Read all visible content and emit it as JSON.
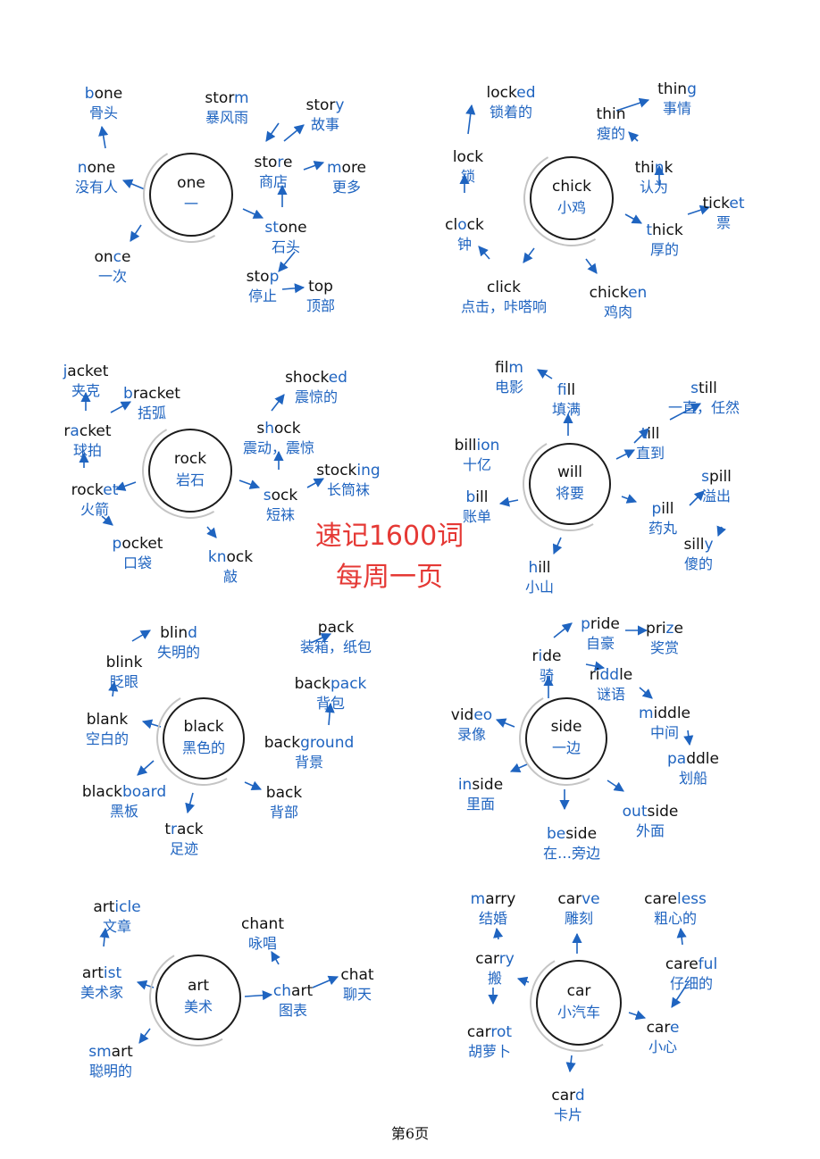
{
  "stamp": {
    "line1": "速记1600词",
    "line2": "每周一页"
  },
  "footer": {
    "page_label": "第6页"
  },
  "colors": {
    "accent_blue": "#1f64c0",
    "stamp_red": "#e53935",
    "ink": "#111111"
  },
  "clusters": [
    {
      "id": "one",
      "hub": {
        "en": [
          [
            "one",
            false
          ]
        ],
        "zh": "一"
      },
      "words": [
        {
          "en": [
            [
              "b",
              true
            ],
            [
              "one",
              false
            ]
          ],
          "zh": "骨头"
        },
        {
          "en": [
            [
              "n",
              true
            ],
            [
              "one",
              false
            ]
          ],
          "zh": "没有人"
        },
        {
          "en": [
            [
              "on",
              false
            ],
            [
              "c",
              true
            ],
            [
              "e",
              false
            ]
          ],
          "zh": "一次"
        },
        {
          "en": [
            [
              "stor",
              false
            ],
            [
              "m",
              true
            ]
          ],
          "zh": "暴风雨"
        },
        {
          "en": [
            [
              "sto",
              false
            ],
            [
              "r",
              true
            ],
            [
              "e",
              false
            ]
          ],
          "zh": "商店"
        },
        {
          "en": [
            [
              "stor",
              false
            ],
            [
              "y",
              true
            ]
          ],
          "zh": "故事"
        },
        {
          "en": [
            [
              "m",
              true
            ],
            [
              "ore",
              false
            ]
          ],
          "zh": "更多"
        },
        {
          "en": [
            [
              "st",
              true
            ],
            [
              "one",
              false
            ]
          ],
          "zh": "石头"
        },
        {
          "en": [
            [
              "sto",
              false
            ],
            [
              "p",
              true
            ]
          ],
          "zh": "停止"
        },
        {
          "en": [
            [
              "top",
              false
            ]
          ],
          "zh": "顶部"
        }
      ]
    },
    {
      "id": "chick",
      "hub": {
        "en": [
          [
            "chick",
            false
          ]
        ],
        "zh": "小鸡"
      },
      "words": [
        {
          "en": [
            [
              "lock",
              false
            ],
            [
              "ed",
              true
            ]
          ],
          "zh": "锁着的"
        },
        {
          "en": [
            [
              "lock",
              false
            ]
          ],
          "zh": "锁"
        },
        {
          "en": [
            [
              "cl",
              false
            ],
            [
              "o",
              true
            ],
            [
              "ck",
              false
            ]
          ],
          "zh": "钟"
        },
        {
          "en": [
            [
              "click",
              false
            ]
          ],
          "zh": "点击，咔嗒响"
        },
        {
          "en": [
            [
              "chick",
              false
            ],
            [
              "en",
              true
            ]
          ],
          "zh": "鸡肉"
        },
        {
          "en": [
            [
              "thin",
              false
            ]
          ],
          "zh": "瘦的"
        },
        {
          "en": [
            [
              "thin",
              false
            ],
            [
              "g",
              true
            ]
          ],
          "zh": "事情"
        },
        {
          "en": [
            [
              "thi",
              false
            ],
            [
              "n",
              true
            ],
            [
              "k",
              false
            ]
          ],
          "zh": "认为"
        },
        {
          "en": [
            [
              "t",
              true
            ],
            [
              "hick",
              false
            ]
          ],
          "zh": "厚的"
        },
        {
          "en": [
            [
              "tick",
              false
            ],
            [
              "et",
              true
            ]
          ],
          "zh": "票"
        }
      ]
    },
    {
      "id": "rock",
      "hub": {
        "en": [
          [
            "rock",
            false
          ]
        ],
        "zh": "岩石"
      },
      "words": [
        {
          "en": [
            [
              "j",
              true
            ],
            [
              "acket",
              false
            ]
          ],
          "zh": "夹克"
        },
        {
          "en": [
            [
              "b",
              true
            ],
            [
              "racket",
              false
            ]
          ],
          "zh": "括弧"
        },
        {
          "en": [
            [
              "r",
              false
            ],
            [
              "a",
              true
            ],
            [
              "cket",
              false
            ]
          ],
          "zh": "球拍"
        },
        {
          "en": [
            [
              "rock",
              false
            ],
            [
              "et",
              true
            ]
          ],
          "zh": "火箭"
        },
        {
          "en": [
            [
              "p",
              true
            ],
            [
              "ocket",
              false
            ]
          ],
          "zh": "口袋"
        },
        {
          "en": [
            [
              "kn",
              true
            ],
            [
              "ock",
              false
            ]
          ],
          "zh": "敲"
        },
        {
          "en": [
            [
              "shock",
              false
            ],
            [
              "ed",
              true
            ]
          ],
          "zh": "震惊的"
        },
        {
          "en": [
            [
              "s",
              false
            ],
            [
              "h",
              true
            ],
            [
              "ock",
              false
            ]
          ],
          "zh": "震动，震惊"
        },
        {
          "en": [
            [
              "s",
              true
            ],
            [
              "ock",
              false
            ]
          ],
          "zh": "短袜"
        },
        {
          "en": [
            [
              "stock",
              false
            ],
            [
              "ing",
              true
            ]
          ],
          "zh": "长筒袜"
        }
      ]
    },
    {
      "id": "will",
      "hub": {
        "en": [
          [
            "will",
            false
          ]
        ],
        "zh": "将要"
      },
      "words": [
        {
          "en": [
            [
              "fil",
              false
            ],
            [
              "m",
              true
            ]
          ],
          "zh": "电影"
        },
        {
          "en": [
            [
              "f",
              true
            ],
            [
              "ill",
              false
            ]
          ],
          "zh": "填满"
        },
        {
          "en": [
            [
              "s",
              true
            ],
            [
              "till",
              false
            ]
          ],
          "zh": "一直，任然"
        },
        {
          "en": [
            [
              "t",
              true
            ],
            [
              "ill",
              false
            ]
          ],
          "zh": "直到"
        },
        {
          "en": [
            [
              "bill",
              false
            ],
            [
              "ion",
              true
            ]
          ],
          "zh": "十亿"
        },
        {
          "en": [
            [
              "b",
              true
            ],
            [
              "ill",
              false
            ]
          ],
          "zh": "账单"
        },
        {
          "en": [
            [
              "s",
              true
            ],
            [
              "pill",
              false
            ]
          ],
          "zh": "溢出"
        },
        {
          "en": [
            [
              "p",
              true
            ],
            [
              "ill",
              false
            ]
          ],
          "zh": "药丸"
        },
        {
          "en": [
            [
              "sill",
              false
            ],
            [
              "y",
              true
            ]
          ],
          "zh": "傻的"
        },
        {
          "en": [
            [
              "h",
              true
            ],
            [
              "ill",
              false
            ]
          ],
          "zh": "小山"
        }
      ]
    },
    {
      "id": "black",
      "hub": {
        "en": [
          [
            "black",
            false
          ]
        ],
        "zh": "黑色的"
      },
      "words": [
        {
          "en": [
            [
              "blin",
              false
            ],
            [
              "d",
              true
            ]
          ],
          "zh": "失明的"
        },
        {
          "en": [
            [
              "blin",
              false
            ],
            [
              "k",
              false
            ]
          ],
          "zh": "眨眼"
        },
        {
          "en": [
            [
              "blan",
              false
            ],
            [
              "k",
              false
            ]
          ],
          "zh": "空白的"
        },
        {
          "en": [
            [
              "black",
              false
            ],
            [
              "board",
              true
            ]
          ],
          "zh": "黑板"
        },
        {
          "en": [
            [
              "t",
              false
            ],
            [
              "r",
              true
            ],
            [
              "ack",
              false
            ]
          ],
          "zh": "足迹"
        },
        {
          "en": [
            [
              "pack",
              false
            ]
          ],
          "zh": "装箱，纸包"
        },
        {
          "en": [
            [
              "back",
              false
            ],
            [
              "pack",
              true
            ]
          ],
          "zh": "背包"
        },
        {
          "en": [
            [
              "back",
              false
            ],
            [
              "ground",
              true
            ]
          ],
          "zh": "背景"
        },
        {
          "en": [
            [
              "back",
              false
            ]
          ],
          "zh": "背部"
        }
      ]
    },
    {
      "id": "side",
      "hub": {
        "en": [
          [
            "side",
            false
          ]
        ],
        "zh": "一边"
      },
      "words": [
        {
          "en": [
            [
              "p",
              true
            ],
            [
              "ride",
              false
            ]
          ],
          "zh": "自豪"
        },
        {
          "en": [
            [
              "pri",
              false
            ],
            [
              "z",
              true
            ],
            [
              "e",
              false
            ]
          ],
          "zh": "奖赏"
        },
        {
          "en": [
            [
              "r",
              false
            ],
            [
              "i",
              true
            ],
            [
              "de",
              false
            ]
          ],
          "zh": "骑"
        },
        {
          "en": [
            [
              "ri",
              false
            ],
            [
              "dd",
              true
            ],
            [
              "le",
              false
            ]
          ],
          "zh": "谜语"
        },
        {
          "en": [
            [
              "vid",
              false
            ],
            [
              "eo",
              true
            ]
          ],
          "zh": "录像"
        },
        {
          "en": [
            [
              "m",
              true
            ],
            [
              "iddle",
              false
            ]
          ],
          "zh": "中间"
        },
        {
          "en": [
            [
              "p",
              true
            ],
            [
              "a",
              true
            ],
            [
              "ddle",
              false
            ]
          ],
          "zh": "划船"
        },
        {
          "en": [
            [
              "in",
              true
            ],
            [
              "side",
              false
            ]
          ],
          "zh": "里面"
        },
        {
          "en": [
            [
              "out",
              true
            ],
            [
              "side",
              false
            ]
          ],
          "zh": "外面"
        },
        {
          "en": [
            [
              "be",
              true
            ],
            [
              "side",
              false
            ]
          ],
          "zh": "在…旁边"
        }
      ]
    },
    {
      "id": "art",
      "hub": {
        "en": [
          [
            "art",
            false
          ]
        ],
        "zh": "美术"
      },
      "words": [
        {
          "en": [
            [
              "art",
              false
            ],
            [
              "icle",
              true
            ]
          ],
          "zh": "文章"
        },
        {
          "en": [
            [
              "art",
              false
            ],
            [
              "ist",
              true
            ]
          ],
          "zh": "美术家"
        },
        {
          "en": [
            [
              "sm",
              true
            ],
            [
              "art",
              false
            ]
          ],
          "zh": "聪明的"
        },
        {
          "en": [
            [
              "chan",
              false
            ],
            [
              "t",
              false
            ]
          ],
          "zh": "咏唱"
        },
        {
          "en": [
            [
              "c",
              true
            ],
            [
              "h",
              true
            ],
            [
              "art",
              false
            ]
          ],
          "zh": "图表"
        },
        {
          "en": [
            [
              "chat",
              false
            ]
          ],
          "zh": "聊天"
        }
      ]
    },
    {
      "id": "car",
      "hub": {
        "en": [
          [
            "car",
            false
          ]
        ],
        "zh": "小汽车"
      },
      "words": [
        {
          "en": [
            [
              "m",
              true
            ],
            [
              "arry",
              false
            ]
          ],
          "zh": "结婚"
        },
        {
          "en": [
            [
              "car",
              false
            ],
            [
              "ve",
              true
            ]
          ],
          "zh": "雕刻"
        },
        {
          "en": [
            [
              "care",
              false
            ],
            [
              "less",
              true
            ]
          ],
          "zh": "粗心的"
        },
        {
          "en": [
            [
              "car",
              false
            ],
            [
              "ry",
              true
            ]
          ],
          "zh": "搬"
        },
        {
          "en": [
            [
              "care",
              false
            ],
            [
              "ful",
              true
            ]
          ],
          "zh": "仔细的"
        },
        {
          "en": [
            [
              "car",
              false
            ],
            [
              "rot",
              true
            ]
          ],
          "zh": "胡萝卜"
        },
        {
          "en": [
            [
              "car",
              false
            ],
            [
              "e",
              true
            ]
          ],
          "zh": "小心"
        },
        {
          "en": [
            [
              "car",
              false
            ],
            [
              "d",
              true
            ]
          ],
          "zh": "卡片"
        }
      ]
    }
  ]
}
